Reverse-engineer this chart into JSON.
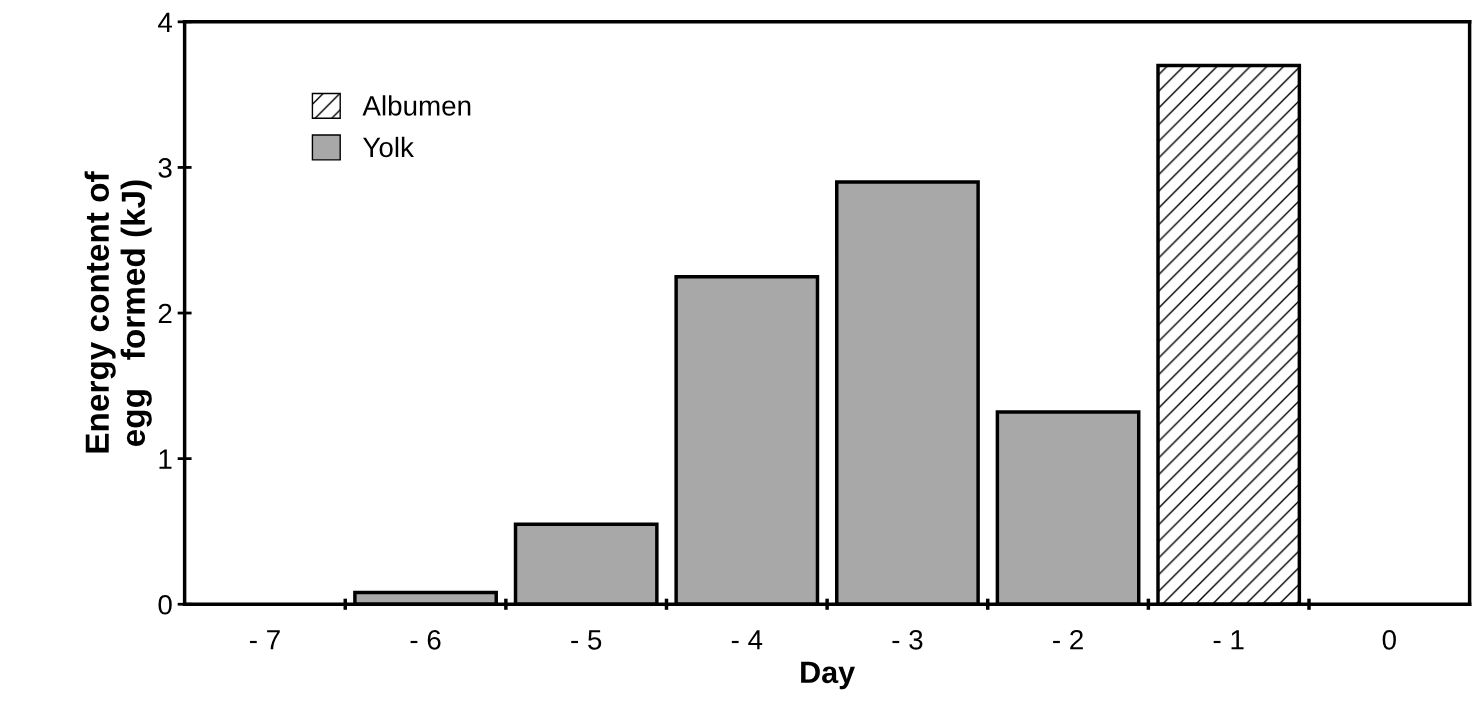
{
  "chart_data": {
    "type": "bar",
    "xlabel": "Day",
    "ylabel": "Energy content of\negg   formed (kJ)",
    "categories": [
      "- 7",
      "- 6",
      "- 5",
      "- 4",
      "- 3",
      "- 2",
      "- 1",
      "0"
    ],
    "series": [
      {
        "name": "Albumen",
        "color": "#ffffff",
        "values": [
          null,
          null,
          null,
          null,
          null,
          null,
          3.7,
          null
        ]
      },
      {
        "name": "Yolk",
        "color": "#a8a8a8",
        "values": [
          null,
          0.08,
          0.55,
          2.25,
          2.9,
          1.32,
          null,
          null
        ]
      }
    ],
    "ylim": [
      0,
      4
    ],
    "yticks": [
      0,
      1,
      2,
      3,
      4
    ],
    "grid": false,
    "legend": "top left"
  }
}
